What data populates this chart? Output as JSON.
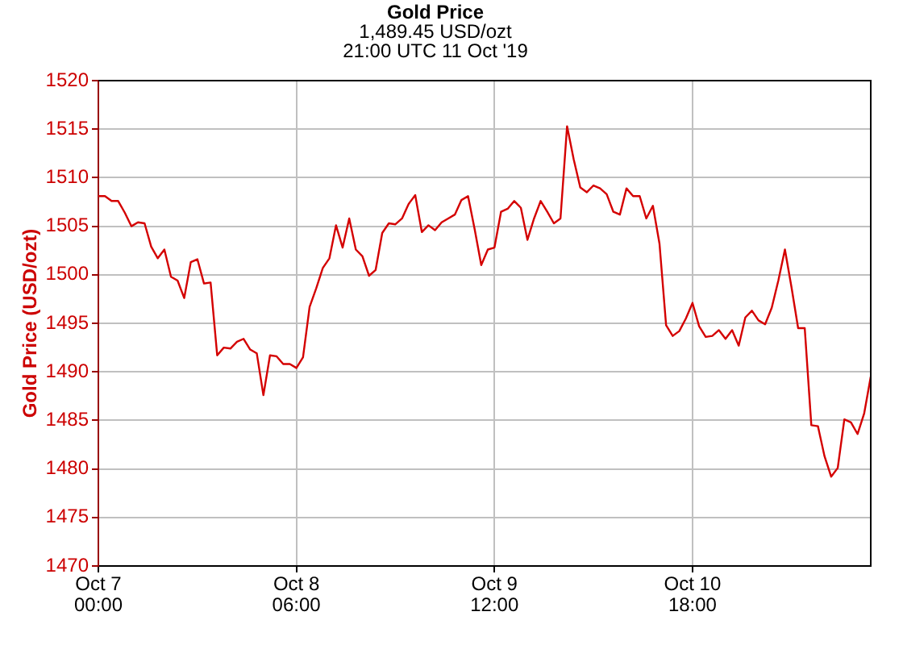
{
  "chart_data": {
    "type": "line",
    "title": "Gold Price",
    "subtitle": "1,489.45 USD/ozt\n21:00 UTC 11 Oct '19",
    "ylabel": "Gold Price (USD/ozt)",
    "x": [
      "2019-10-07T00:00",
      "2019-10-07T01:00",
      "2019-10-07T02:00",
      "2019-10-07T03:00",
      "2019-10-07T04:00",
      "2019-10-07T05:00",
      "2019-10-07T06:00",
      "2019-10-07T07:00",
      "2019-10-07T08:00",
      "2019-10-07T09:00",
      "2019-10-07T10:00",
      "2019-10-07T11:00",
      "2019-10-07T12:00",
      "2019-10-07T13:00",
      "2019-10-07T14:00",
      "2019-10-07T15:00",
      "2019-10-07T16:00",
      "2019-10-07T17:00",
      "2019-10-07T18:00",
      "2019-10-07T19:00",
      "2019-10-07T20:00",
      "2019-10-07T21:00",
      "2019-10-07T22:00",
      "2019-10-07T23:00",
      "2019-10-08T00:00",
      "2019-10-08T01:00",
      "2019-10-08T02:00",
      "2019-10-08T03:00",
      "2019-10-08T04:00",
      "2019-10-08T05:00",
      "2019-10-08T06:00",
      "2019-10-08T07:00",
      "2019-10-08T08:00",
      "2019-10-08T09:00",
      "2019-10-08T10:00",
      "2019-10-08T11:00",
      "2019-10-08T12:00",
      "2019-10-08T13:00",
      "2019-10-08T14:00",
      "2019-10-08T15:00",
      "2019-10-08T16:00",
      "2019-10-08T17:00",
      "2019-10-08T18:00",
      "2019-10-08T19:00",
      "2019-10-08T20:00",
      "2019-10-08T21:00",
      "2019-10-08T22:00",
      "2019-10-08T23:00",
      "2019-10-09T00:00",
      "2019-10-09T01:00",
      "2019-10-09T02:00",
      "2019-10-09T03:00",
      "2019-10-09T04:00",
      "2019-10-09T05:00",
      "2019-10-09T06:00",
      "2019-10-09T07:00",
      "2019-10-09T08:00",
      "2019-10-09T09:00",
      "2019-10-09T10:00",
      "2019-10-09T11:00",
      "2019-10-09T12:00",
      "2019-10-09T13:00",
      "2019-10-09T14:00",
      "2019-10-09T15:00",
      "2019-10-09T16:00",
      "2019-10-09T17:00",
      "2019-10-09T18:00",
      "2019-10-09T19:00",
      "2019-10-09T20:00",
      "2019-10-09T21:00",
      "2019-10-09T22:00",
      "2019-10-09T23:00",
      "2019-10-10T00:00",
      "2019-10-10T01:00",
      "2019-10-10T02:00",
      "2019-10-10T03:00",
      "2019-10-10T04:00",
      "2019-10-10T05:00",
      "2019-10-10T06:00",
      "2019-10-10T07:00",
      "2019-10-10T08:00",
      "2019-10-10T09:00",
      "2019-10-10T10:00",
      "2019-10-10T11:00",
      "2019-10-10T12:00",
      "2019-10-10T13:00",
      "2019-10-10T14:00",
      "2019-10-10T15:00",
      "2019-10-10T16:00",
      "2019-10-10T17:00",
      "2019-10-10T18:00",
      "2019-10-10T19:00",
      "2019-10-10T20:00",
      "2019-10-10T21:00",
      "2019-10-10T22:00",
      "2019-10-10T23:00",
      "2019-10-11T00:00",
      "2019-10-11T01:00",
      "2019-10-11T02:00",
      "2019-10-11T03:00",
      "2019-10-11T04:00",
      "2019-10-11T05:00",
      "2019-10-11T06:00",
      "2019-10-11T07:00",
      "2019-10-11T08:00",
      "2019-10-11T09:00",
      "2019-10-11T10:00",
      "2019-10-11T11:00",
      "2019-10-11T12:00",
      "2019-10-11T13:00",
      "2019-10-11T14:00",
      "2019-10-11T15:00",
      "2019-10-11T16:00",
      "2019-10-11T17:00",
      "2019-10-11T18:00",
      "2019-10-11T19:00",
      "2019-10-11T20:00",
      "2019-10-11T21:00"
    ],
    "values": [
      1508.1,
      1508.1,
      1507.6,
      1507.6,
      1506.4,
      1505.0,
      1505.4,
      1505.3,
      1502.9,
      1501.7,
      1502.6,
      1499.8,
      1499.4,
      1497.6,
      1501.3,
      1501.6,
      1499.1,
      1499.2,
      1491.7,
      1492.5,
      1492.4,
      1493.1,
      1493.4,
      1492.3,
      1491.9,
      1487.6,
      1491.7,
      1491.6,
      1490.8,
      1490.8,
      1490.4,
      1491.5,
      1496.7,
      1498.6,
      1500.7,
      1501.7,
      1505.1,
      1502.8,
      1505.8,
      1502.6,
      1501.9,
      1499.9,
      1500.5,
      1504.3,
      1505.3,
      1505.2,
      1505.8,
      1507.3,
      1508.2,
      1504.4,
      1505.1,
      1504.6,
      1505.4,
      1505.8,
      1506.2,
      1507.7,
      1508.1,
      1504.7,
      1501.0,
      1502.6,
      1502.8,
      1506.5,
      1506.8,
      1507.6,
      1506.9,
      1503.6,
      1505.8,
      1507.6,
      1506.5,
      1505.3,
      1505.8,
      1515.3,
      1511.9,
      1509.0,
      1508.5,
      1509.2,
      1508.9,
      1508.3,
      1506.5,
      1506.2,
      1508.9,
      1508.1,
      1508.1,
      1505.8,
      1507.1,
      1503.2,
      1494.8,
      1493.7,
      1494.2,
      1495.5,
      1497.1,
      1494.7,
      1493.6,
      1493.7,
      1494.3,
      1493.4,
      1494.3,
      1492.7,
      1495.6,
      1496.3,
      1495.3,
      1494.9,
      1496.6,
      1499.4,
      1502.6,
      1498.7,
      1494.5,
      1494.5,
      1484.5,
      1484.4,
      1481.3,
      1479.2,
      1480.1,
      1485.1,
      1484.8,
      1483.6,
      1485.7,
      1489.5
    ],
    "color": "#d40000",
    "xlim": [
      "2019-10-07T00:00",
      "2019-10-11T21:00"
    ],
    "xticks": [
      {
        "value": "2019-10-07T00:00",
        "label": "Oct 7\n00:00"
      },
      {
        "value": "2019-10-08T06:00",
        "label": "Oct 8\n06:00"
      },
      {
        "value": "2019-10-09T12:00",
        "label": "Oct 9\n12:00"
      },
      {
        "value": "2019-10-10T18:00",
        "label": "Oct 10\n18:00"
      }
    ],
    "ylim": [
      1470,
      1520
    ],
    "yticks": [
      1470,
      1475,
      1480,
      1485,
      1490,
      1495,
      1500,
      1505,
      1510,
      1515,
      1520
    ],
    "grid": true,
    "legend": false,
    "marker": "none",
    "line_style": "solid"
  }
}
